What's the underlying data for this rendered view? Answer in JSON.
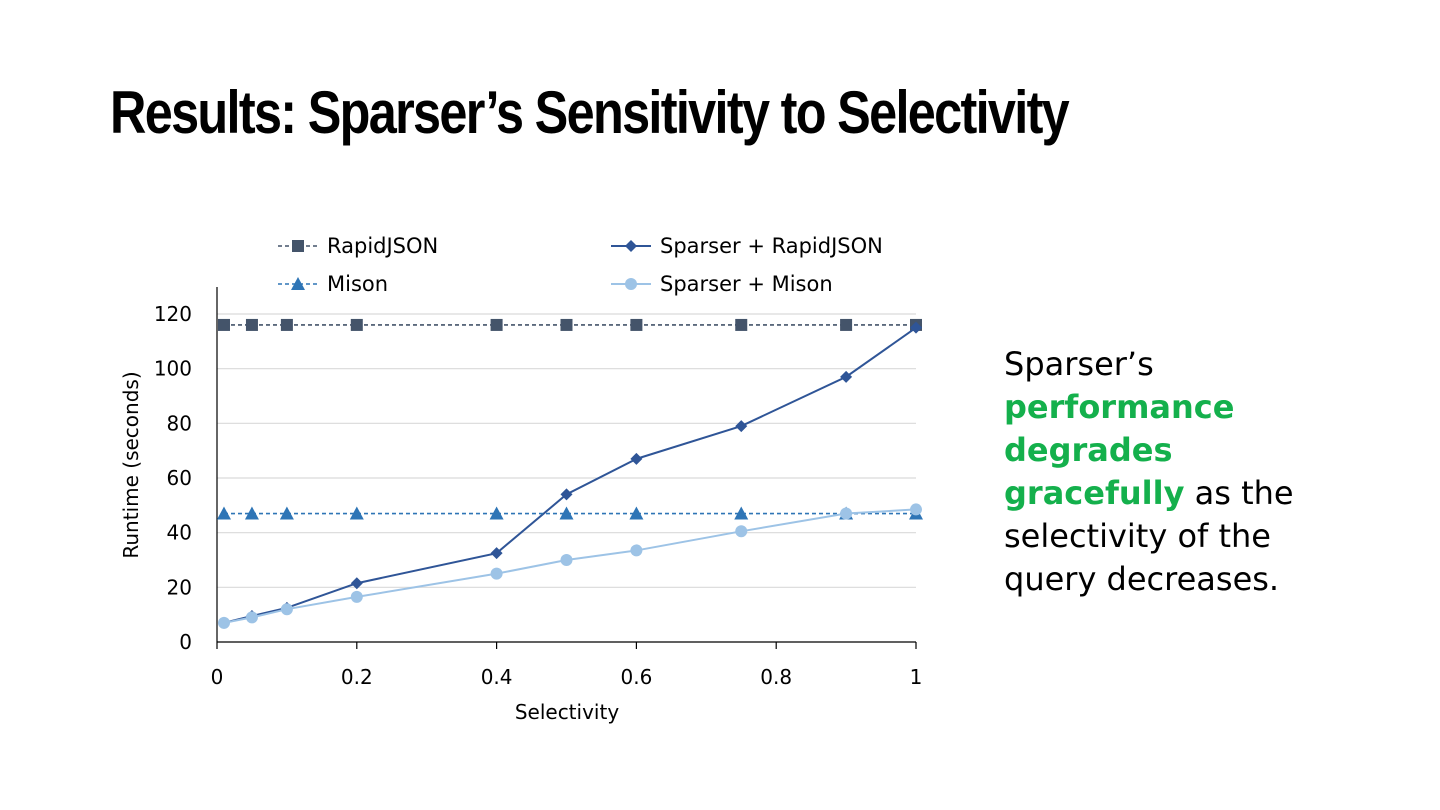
{
  "slide": {
    "title": "Results: Sparser’s Sensitivity to Selectivity",
    "side_text": {
      "before": "Sparser’s",
      "highlight": "performance degrades gracefully",
      "after": "as the selectivity of the query decreases.",
      "highlight_color": "#14b04c"
    }
  },
  "chart_data": {
    "type": "line",
    "title": "",
    "xlabel": "Selectivity",
    "ylabel": "Runtime (seconds)",
    "xlim": [
      0,
      1
    ],
    "ylim": [
      0,
      120
    ],
    "xticks": [
      "0",
      "0.2",
      "0.4",
      "0.6",
      "0.8",
      "1"
    ],
    "yticks": [
      "0",
      "20",
      "40",
      "60",
      "80",
      "100",
      "120"
    ],
    "grid": "horizontal",
    "legend_position": "top",
    "series": [
      {
        "name": "RapidJSON",
        "marker": "square",
        "line": "dashed",
        "color": "#44546a",
        "x": [
          0.01,
          0.05,
          0.1,
          0.2,
          0.4,
          0.5,
          0.6,
          0.75,
          0.9,
          1.0
        ],
        "y": [
          116,
          116,
          116,
          116,
          116,
          116,
          116,
          116,
          116,
          116
        ]
      },
      {
        "name": "Sparser + RapidJSON",
        "marker": "diamond",
        "line": "solid",
        "color": "#2f5597",
        "x": [
          0.01,
          0.05,
          0.1,
          0.2,
          0.4,
          0.5,
          0.6,
          0.75,
          0.9,
          1.0
        ],
        "y": [
          7,
          9.5,
          12.5,
          21.5,
          32.5,
          54,
          67,
          79,
          97,
          115
        ]
      },
      {
        "name": "Mison",
        "marker": "triangle",
        "line": "dashed",
        "color": "#2e75b6",
        "x": [
          0.01,
          0.05,
          0.1,
          0.2,
          0.4,
          0.5,
          0.6,
          0.75,
          0.9,
          1.0
        ],
        "y": [
          47,
          47,
          47,
          47,
          47,
          47,
          47,
          47,
          47,
          47
        ]
      },
      {
        "name": "Sparser + Mison",
        "marker": "circle",
        "line": "solid",
        "color": "#9dc3e6",
        "x": [
          0.01,
          0.05,
          0.1,
          0.2,
          0.4,
          0.5,
          0.6,
          0.75,
          0.9,
          1.0
        ],
        "y": [
          7,
          9,
          12,
          16.5,
          25,
          30,
          33.5,
          40.5,
          47,
          48.5
        ]
      }
    ]
  }
}
